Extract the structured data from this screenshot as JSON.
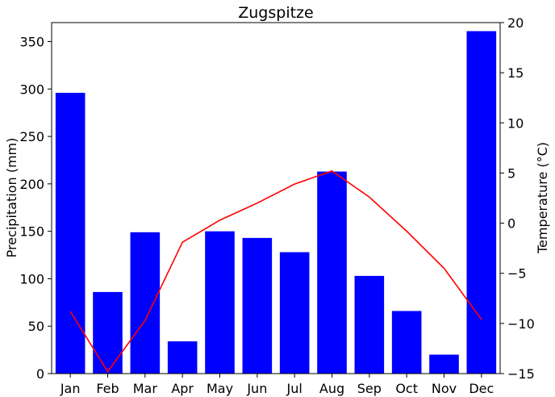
{
  "chart_data": {
    "type": "bar",
    "title": "Zugspitze",
    "xlabel": "",
    "ylabel": "Precipitation (mm)",
    "y2label": "Temperature (°C)",
    "categories": [
      "Jan",
      "Feb",
      "Mar",
      "Apr",
      "May",
      "Jun",
      "Jul",
      "Aug",
      "Sep",
      "Oct",
      "Nov",
      "Dec"
    ],
    "ylim": [
      0,
      370
    ],
    "y2lim": [
      -15,
      20
    ],
    "yticks": [
      0,
      50,
      100,
      150,
      200,
      250,
      300,
      350
    ],
    "y2ticks": [
      -15,
      -10,
      -5,
      0,
      5,
      10,
      15,
      20
    ],
    "ytick_labels": [
      "0",
      "50",
      "100",
      "150",
      "200",
      "250",
      "300",
      "350"
    ],
    "y2tick_labels": [
      "−15",
      "−10",
      "−5",
      "0",
      "5",
      "10",
      "15",
      "20"
    ],
    "grid": false,
    "series": [
      {
        "type": "bar",
        "axis": "left",
        "color": "#0000ff",
        "values": [
          296,
          86,
          149,
          34,
          150,
          143,
          128,
          213,
          103,
          66,
          20,
          361
        ]
      },
      {
        "type": "line",
        "axis": "right",
        "color": "#ff0000",
        "values": [
          -8.8,
          -14.8,
          -9.7,
          -1.9,
          0.3,
          2.0,
          3.9,
          5.2,
          2.6,
          -0.8,
          -4.5,
          -9.6
        ]
      }
    ]
  }
}
